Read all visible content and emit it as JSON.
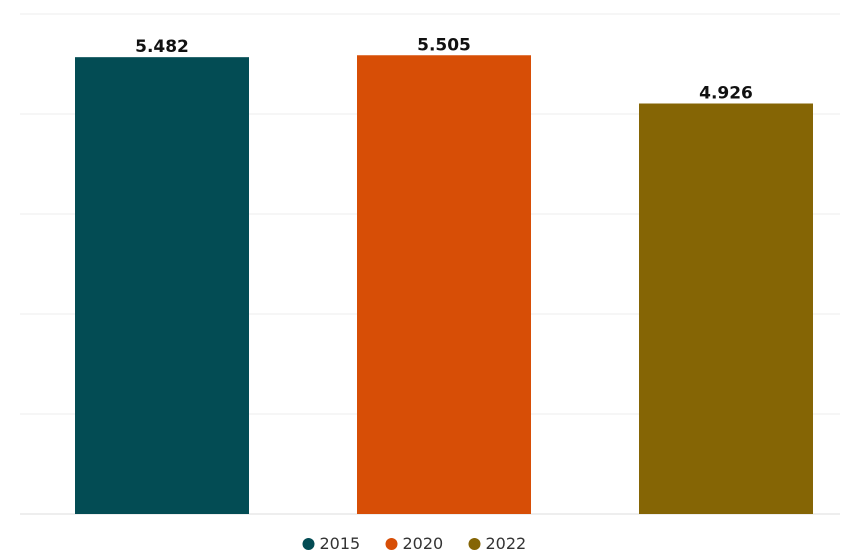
{
  "chart_data": {
    "type": "bar",
    "categories": [
      "2015",
      "2020",
      "2022"
    ],
    "values": [
      5.482,
      5.505,
      4.926
    ],
    "value_labels": [
      "5.482",
      "5.505",
      "4.926"
    ],
    "colors": [
      "#034C54",
      "#D74E06",
      "#856505"
    ],
    "ylim": [
      0,
      6
    ],
    "grid": true,
    "legend": {
      "position": "bottom-center",
      "entries": [
        "2015",
        "2020",
        "2022"
      ]
    },
    "title": "",
    "xlabel": "",
    "ylabel": ""
  }
}
